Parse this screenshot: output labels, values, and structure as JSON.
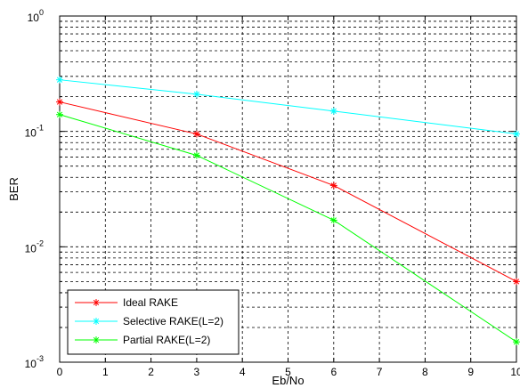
{
  "chart_data": {
    "type": "line",
    "title": "",
    "xlabel": "Eb/No",
    "ylabel": "BER",
    "xlim": [
      0,
      10
    ],
    "ylim": [
      0.001,
      1
    ],
    "yscale": "log",
    "grid": true,
    "legend_position": "bottom-left",
    "x_ticks": [
      "0",
      "1",
      "2",
      "3",
      "4",
      "5",
      "6",
      "7",
      "8",
      "9",
      "10"
    ],
    "y_ticks": [
      {
        "value": 1,
        "base": "10",
        "exp": "0"
      },
      {
        "value": 0.1,
        "base": "10",
        "exp": "-1"
      },
      {
        "value": 0.01,
        "base": "10",
        "exp": "-2"
      },
      {
        "value": 0.001,
        "base": "10",
        "exp": "-3"
      }
    ],
    "series": [
      {
        "name": "Ideal RAKE",
        "color": "#ff0000",
        "x": [
          0,
          3,
          6,
          10
        ],
        "y": [
          0.18,
          0.095,
          0.034,
          0.005
        ]
      },
      {
        "name": "Selective RAKE(L=2)",
        "color": "#00ffff",
        "x": [
          0,
          3,
          6,
          10
        ],
        "y": [
          0.28,
          0.21,
          0.15,
          0.095
        ]
      },
      {
        "name": "Partial RAKE(L=2)",
        "color": "#00ff00",
        "x": [
          0,
          3,
          6,
          10
        ],
        "y": [
          0.14,
          0.062,
          0.017,
          0.0015
        ]
      }
    ]
  }
}
